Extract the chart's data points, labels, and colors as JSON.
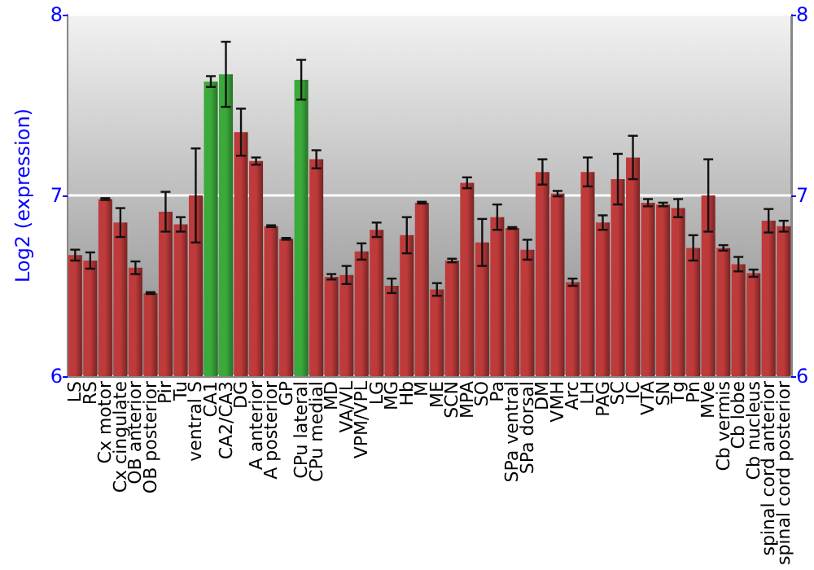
{
  "chart_data": {
    "type": "bar",
    "ylabel": "Log2 (expression)",
    "categories": [
      "LS",
      "RS",
      "Cx motor",
      "Cx cingulate",
      "OB anterior",
      "OB posterior",
      "Pir",
      "Tu",
      "ventral S",
      "CA1",
      "CA2/CA3",
      "DG",
      "A anterior",
      "A posterior",
      "GP",
      "CPu lateral",
      "CPu medial",
      "MD",
      "VA/VL",
      "VPM/VPL",
      "LG",
      "MG",
      "Hb",
      "M",
      "ME",
      "SCN",
      "MPA",
      "SO",
      "Pa",
      "SPa ventral",
      "SPa dorsal",
      "DM",
      "VMH",
      "Arc",
      "LH",
      "PAG",
      "SC",
      "IC",
      "VTA",
      "SN",
      "Tg",
      "Pn",
      "MVe",
      "Cb vermis",
      "Cb lobe",
      "Cb nucleus",
      "spinal cord anterior",
      "spinal cord posterior"
    ],
    "values": [
      6.67,
      6.64,
      6.98,
      6.85,
      6.6,
      6.46,
      6.91,
      6.84,
      7.0,
      7.63,
      7.67,
      7.35,
      7.19,
      6.83,
      6.76,
      7.64,
      7.2,
      6.55,
      6.56,
      6.69,
      6.81,
      6.5,
      6.78,
      6.96,
      6.48,
      6.64,
      7.07,
      6.74,
      6.88,
      6.82,
      6.7,
      7.13,
      7.01,
      6.52,
      7.13,
      6.85,
      7.09,
      7.21,
      6.96,
      6.95,
      6.93,
      6.71,
      7.0,
      6.71,
      6.62,
      6.57,
      6.86,
      6.83
    ],
    "errors": [
      0.03,
      0.045,
      0.005,
      0.08,
      0.035,
      0.005,
      0.11,
      0.04,
      0.26,
      0.03,
      0.18,
      0.13,
      0.02,
      0.005,
      0.005,
      0.11,
      0.05,
      0.015,
      0.05,
      0.045,
      0.04,
      0.04,
      0.1,
      0.005,
      0.035,
      0.01,
      0.03,
      0.13,
      0.07,
      0.005,
      0.055,
      0.07,
      0.015,
      0.02,
      0.08,
      0.04,
      0.14,
      0.12,
      0.02,
      0.01,
      0.05,
      0.07,
      0.2,
      0.015,
      0.04,
      0.02,
      0.065,
      0.03
    ],
    "colors": [
      "#bf3a3a",
      "#bf3a3a",
      "#bf3a3a",
      "#bf3a3a",
      "#bf3a3a",
      "#bf3a3a",
      "#bf3a3a",
      "#bf3a3a",
      "#bf3a3a",
      "#3aaa3a",
      "#3aaa3a",
      "#bf3a3a",
      "#bf3a3a",
      "#bf3a3a",
      "#bf3a3a",
      "#3aaa3a",
      "#bf3a3a",
      "#bf3a3a",
      "#bf3a3a",
      "#bf3a3a",
      "#bf3a3a",
      "#bf3a3a",
      "#bf3a3a",
      "#bf3a3a",
      "#bf3a3a",
      "#bf3a3a",
      "#bf3a3a",
      "#bf3a3a",
      "#bf3a3a",
      "#bf3a3a",
      "#bf3a3a",
      "#bf3a3a",
      "#bf3a3a",
      "#bf3a3a",
      "#bf3a3a",
      "#bf3a3a",
      "#bf3a3a",
      "#bf3a3a",
      "#bf3a3a",
      "#bf3a3a",
      "#bf3a3a",
      "#bf3a3a",
      "#bf3a3a",
      "#bf3a3a",
      "#bf3a3a",
      "#bf3a3a",
      "#bf3a3a",
      "#bf3a3a"
    ],
    "ylim": [
      6,
      8
    ],
    "yticks": [
      6,
      7,
      8
    ],
    "y2lim": [
      6,
      8
    ],
    "y2ticks": [
      6,
      7,
      8
    ],
    "grid": "y"
  }
}
